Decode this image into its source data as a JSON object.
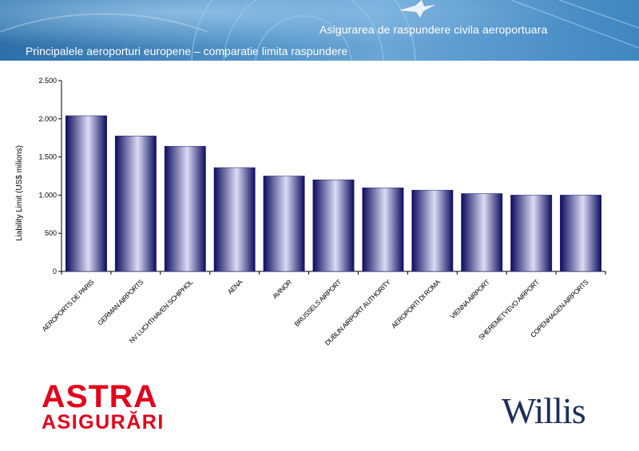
{
  "header": {
    "subtitle": "Asigurarea de raspundere civila aeroportuara",
    "title": "Principalele aeroporturi europene – comparatie limita raspundere"
  },
  "chart_data": {
    "type": "bar",
    "title": "",
    "xlabel": "",
    "ylabel": "Liability Limit (US$ milions)",
    "ylim": [
      0,
      2500
    ],
    "yticks": [
      0,
      500,
      1000,
      1500,
      2000,
      2500
    ],
    "ytick_labels": [
      "0",
      "500",
      "1.000",
      "1.500",
      "2.000",
      "2.500"
    ],
    "grid": false,
    "legend": "none",
    "bar_color": "#1a1a7a",
    "categories": [
      "AEROPORTS DE PARIS",
      "GERMAN AIRPORTS",
      "NV LUCHTHAVEN SCHIPHOL",
      "AENA",
      "AVINOR",
      "BRUSSELS AIRPORT",
      "DUBLIN AIRPORT AUTHORITY",
      "AEROPORTI DI ROMA",
      "VIENNA AIRPORT",
      "SHEREMETYEVO AIRPORT",
      "COPENHAGEN AIRPORTS"
    ],
    "values": [
      2040,
      1775,
      1640,
      1360,
      1250,
      1200,
      1095,
      1065,
      1020,
      1000,
      1000
    ]
  },
  "logos": {
    "astra_line1": "ASTRA",
    "astra_line2": "ASIGURĂRI",
    "willis": "Willis"
  }
}
